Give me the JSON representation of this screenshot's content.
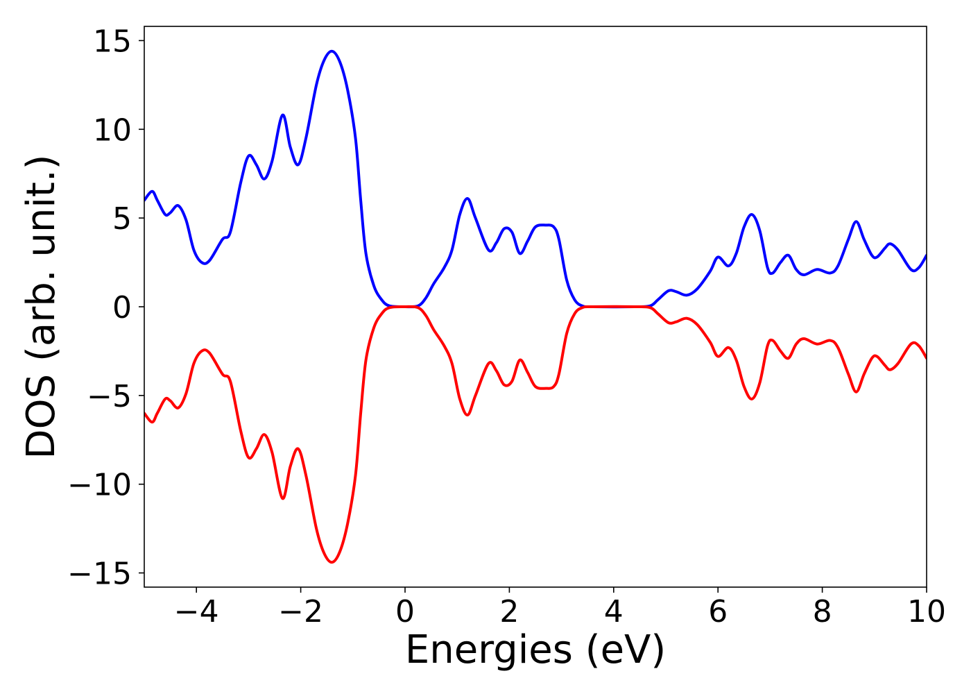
{
  "chart_data": {
    "type": "line",
    "title": "",
    "xlabel": "Energies (eV)",
    "ylabel": "DOS (arb. unit.)",
    "xlim": [
      -5,
      10
    ],
    "ylim": [
      -15.8,
      15.8
    ],
    "grid": false,
    "legend": "none",
    "x_ticks": [
      -4,
      -2,
      0,
      2,
      4,
      6,
      8,
      10
    ],
    "x_tick_labels": [
      "−4",
      "−2",
      "0",
      "2",
      "4",
      "6",
      "8",
      "10"
    ],
    "y_ticks": [
      15,
      10,
      5,
      0,
      -5,
      -10,
      -15
    ],
    "y_tick_labels": [
      "15",
      "10",
      "5",
      "0",
      "−5",
      "−10",
      "−15"
    ],
    "series": [
      {
        "color": "#0000ff",
        "points": [
          [
            -5.0,
            6.0
          ],
          [
            -4.85,
            6.5
          ],
          [
            -4.75,
            6.0
          ],
          [
            -4.6,
            5.2
          ],
          [
            -4.5,
            5.3
          ],
          [
            -4.35,
            5.7
          ],
          [
            -4.2,
            4.9
          ],
          [
            -4.05,
            3.2
          ],
          [
            -3.9,
            2.5
          ],
          [
            -3.75,
            2.6
          ],
          [
            -3.5,
            3.8
          ],
          [
            -3.35,
            4.2
          ],
          [
            -3.15,
            7.0
          ],
          [
            -3.0,
            8.5
          ],
          [
            -2.85,
            8.0
          ],
          [
            -2.7,
            7.2
          ],
          [
            -2.55,
            8.2
          ],
          [
            -2.35,
            10.8
          ],
          [
            -2.2,
            9.0
          ],
          [
            -2.05,
            8.0
          ],
          [
            -1.9,
            9.5
          ],
          [
            -1.7,
            12.5
          ],
          [
            -1.55,
            13.9
          ],
          [
            -1.4,
            14.4
          ],
          [
            -1.25,
            13.8
          ],
          [
            -1.1,
            12.2
          ],
          [
            -0.95,
            9.5
          ],
          [
            -0.85,
            6.0
          ],
          [
            -0.75,
            3.0
          ],
          [
            -0.6,
            1.2
          ],
          [
            -0.45,
            0.4
          ],
          [
            -0.3,
            0.05
          ],
          [
            0.0,
            0.0
          ],
          [
            0.25,
            0.05
          ],
          [
            0.4,
            0.5
          ],
          [
            0.55,
            1.3
          ],
          [
            0.75,
            2.2
          ],
          [
            0.9,
            3.2
          ],
          [
            1.05,
            5.2
          ],
          [
            1.2,
            6.1
          ],
          [
            1.35,
            5.0
          ],
          [
            1.6,
            3.2
          ],
          [
            1.75,
            3.6
          ],
          [
            1.9,
            4.4
          ],
          [
            2.05,
            4.2
          ],
          [
            2.2,
            3.0
          ],
          [
            2.35,
            3.7
          ],
          [
            2.5,
            4.5
          ],
          [
            2.7,
            4.6
          ],
          [
            2.85,
            4.5
          ],
          [
            2.95,
            3.8
          ],
          [
            3.1,
            1.5
          ],
          [
            3.25,
            0.4
          ],
          [
            3.4,
            0.05
          ],
          [
            3.6,
            0.0
          ],
          [
            4.4,
            0.0
          ],
          [
            4.7,
            0.05
          ],
          [
            4.85,
            0.4
          ],
          [
            5.05,
            0.9
          ],
          [
            5.2,
            0.85
          ],
          [
            5.4,
            0.65
          ],
          [
            5.6,
            1.0
          ],
          [
            5.85,
            2.0
          ],
          [
            6.0,
            2.8
          ],
          [
            6.2,
            2.3
          ],
          [
            6.35,
            3.0
          ],
          [
            6.5,
            4.5
          ],
          [
            6.65,
            5.2
          ],
          [
            6.8,
            4.3
          ],
          [
            6.95,
            2.2
          ],
          [
            7.05,
            1.9
          ],
          [
            7.2,
            2.5
          ],
          [
            7.35,
            2.9
          ],
          [
            7.5,
            2.1
          ],
          [
            7.65,
            1.8
          ],
          [
            7.9,
            2.1
          ],
          [
            8.15,
            1.9
          ],
          [
            8.3,
            2.3
          ],
          [
            8.5,
            3.8
          ],
          [
            8.65,
            4.8
          ],
          [
            8.8,
            3.8
          ],
          [
            8.95,
            2.9
          ],
          [
            9.05,
            2.8
          ],
          [
            9.2,
            3.3
          ],
          [
            9.3,
            3.55
          ],
          [
            9.45,
            3.2
          ],
          [
            9.7,
            2.1
          ],
          [
            9.85,
            2.2
          ],
          [
            10.0,
            2.9
          ]
        ]
      },
      {
        "color": "#ff0000",
        "points": [
          [
            -5.0,
            -6.0
          ],
          [
            -4.85,
            -6.5
          ],
          [
            -4.75,
            -6.0
          ],
          [
            -4.6,
            -5.2
          ],
          [
            -4.5,
            -5.3
          ],
          [
            -4.35,
            -5.7
          ],
          [
            -4.2,
            -4.9
          ],
          [
            -4.05,
            -3.2
          ],
          [
            -3.9,
            -2.5
          ],
          [
            -3.75,
            -2.6
          ],
          [
            -3.5,
            -3.8
          ],
          [
            -3.35,
            -4.2
          ],
          [
            -3.15,
            -7.0
          ],
          [
            -3.0,
            -8.5
          ],
          [
            -2.85,
            -8.0
          ],
          [
            -2.7,
            -7.2
          ],
          [
            -2.55,
            -8.2
          ],
          [
            -2.35,
            -10.8
          ],
          [
            -2.2,
            -9.0
          ],
          [
            -2.05,
            -8.0
          ],
          [
            -1.9,
            -9.5
          ],
          [
            -1.7,
            -12.5
          ],
          [
            -1.55,
            -13.9
          ],
          [
            -1.4,
            -14.4
          ],
          [
            -1.25,
            -13.8
          ],
          [
            -1.1,
            -12.2
          ],
          [
            -0.95,
            -9.5
          ],
          [
            -0.85,
            -6.0
          ],
          [
            -0.75,
            -3.0
          ],
          [
            -0.6,
            -1.2
          ],
          [
            -0.45,
            -0.4
          ],
          [
            -0.3,
            -0.05
          ],
          [
            0.0,
            0.0
          ],
          [
            0.25,
            -0.05
          ],
          [
            0.4,
            -0.5
          ],
          [
            0.55,
            -1.3
          ],
          [
            0.75,
            -2.2
          ],
          [
            0.9,
            -3.2
          ],
          [
            1.05,
            -5.2
          ],
          [
            1.2,
            -6.1
          ],
          [
            1.35,
            -5.0
          ],
          [
            1.6,
            -3.2
          ],
          [
            1.75,
            -3.6
          ],
          [
            1.9,
            -4.4
          ],
          [
            2.05,
            -4.2
          ],
          [
            2.2,
            -3.0
          ],
          [
            2.35,
            -3.7
          ],
          [
            2.5,
            -4.5
          ],
          [
            2.7,
            -4.6
          ],
          [
            2.85,
            -4.5
          ],
          [
            2.95,
            -3.8
          ],
          [
            3.1,
            -1.5
          ],
          [
            3.25,
            -0.4
          ],
          [
            3.4,
            -0.05
          ],
          [
            3.6,
            0.0
          ],
          [
            4.4,
            0.0
          ],
          [
            4.7,
            -0.05
          ],
          [
            4.85,
            -0.4
          ],
          [
            5.05,
            -0.9
          ],
          [
            5.2,
            -0.85
          ],
          [
            5.4,
            -0.65
          ],
          [
            5.6,
            -1.0
          ],
          [
            5.85,
            -2.0
          ],
          [
            6.0,
            -2.8
          ],
          [
            6.2,
            -2.3
          ],
          [
            6.35,
            -3.0
          ],
          [
            6.5,
            -4.5
          ],
          [
            6.65,
            -5.2
          ],
          [
            6.8,
            -4.3
          ],
          [
            6.95,
            -2.2
          ],
          [
            7.05,
            -1.9
          ],
          [
            7.2,
            -2.5
          ],
          [
            7.35,
            -2.9
          ],
          [
            7.5,
            -2.1
          ],
          [
            7.65,
            -1.8
          ],
          [
            7.9,
            -2.1
          ],
          [
            8.15,
            -1.9
          ],
          [
            8.3,
            -2.3
          ],
          [
            8.5,
            -3.8
          ],
          [
            8.65,
            -4.8
          ],
          [
            8.8,
            -3.8
          ],
          [
            8.95,
            -2.9
          ],
          [
            9.05,
            -2.8
          ],
          [
            9.2,
            -3.3
          ],
          [
            9.3,
            -3.55
          ],
          [
            9.45,
            -3.2
          ],
          [
            9.7,
            -2.1
          ],
          [
            9.85,
            -2.2
          ],
          [
            10.0,
            -2.9
          ]
        ]
      }
    ]
  }
}
